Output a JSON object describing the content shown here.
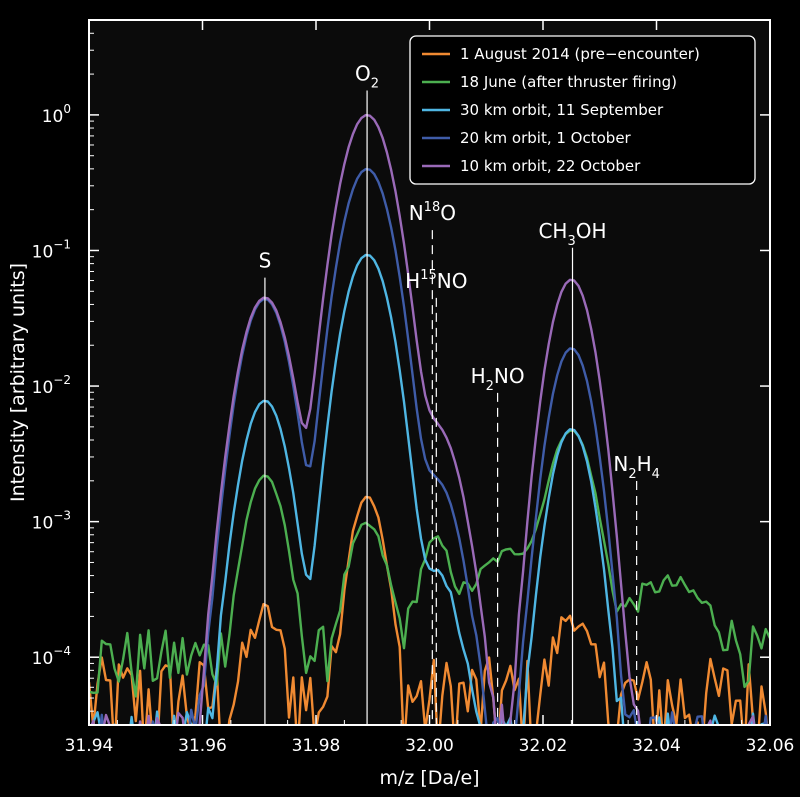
{
  "chart_data": {
    "type": "line",
    "xlabel": "m/z [Da/e]",
    "ylabel": "Intensity [arbitrary units]",
    "xlim": [
      31.94,
      32.06
    ],
    "ylim_log10": [
      -4.5,
      0.7
    ],
    "yscale": "log",
    "x_ticks": [
      {
        "value": 31.94,
        "label": "31.94"
      },
      {
        "value": 31.96,
        "label": "31.96"
      },
      {
        "value": 31.98,
        "label": "31.98"
      },
      {
        "value": 32.0,
        "label": "32.00"
      },
      {
        "value": 32.02,
        "label": "32.02"
      },
      {
        "value": 32.04,
        "label": "32.04"
      },
      {
        "value": 32.06,
        "label": "32.06"
      }
    ],
    "y_ticks": [
      {
        "exp": 0,
        "base": "10",
        "sup": "0"
      },
      {
        "exp": -1,
        "base": "10",
        "sup": "−1"
      },
      {
        "exp": -2,
        "base": "10",
        "sup": "−2"
      },
      {
        "exp": -3,
        "base": "10",
        "sup": "−3"
      },
      {
        "exp": -4,
        "base": "10",
        "sup": "−4"
      }
    ],
    "legend_position": "top-right",
    "series": [
      {
        "name": "1 August 2014 (pre−encounter)",
        "color": "#f08a32",
        "noise": 5e-05,
        "baseline": 5e-05,
        "peaks": [
          [
            31.971,
            0.00016,
            0.0022
          ],
          [
            31.989,
            0.0015,
            0.0022
          ],
          [
            32.025,
            0.00016,
            0.0022
          ]
        ]
      },
      {
        "name": "18 June (after thruster firing)",
        "color": "#4caf50",
        "noise": 6e-05,
        "baseline": 0.0001,
        "peaks": [
          [
            31.971,
            0.0021,
            0.0025
          ],
          [
            31.989,
            0.00085,
            0.0026
          ],
          [
            32.001,
            0.0006,
            0.0022
          ],
          [
            32.015,
            0.0005,
            0.006
          ],
          [
            32.025,
            0.0045,
            0.0028
          ],
          [
            32.042,
            0.00025,
            0.006
          ]
        ]
      },
      {
        "name": "30 km orbit, 11 September",
        "color": "#4fb6e3",
        "noise": 2e-05,
        "baseline": 2e-05,
        "peaks": [
          [
            31.971,
            0.0078,
            0.0028
          ],
          [
            31.989,
            0.093,
            0.0029
          ],
          [
            32.001,
            0.0004,
            0.003
          ],
          [
            32.025,
            0.0048,
            0.0026
          ]
        ]
      },
      {
        "name": "20 km orbit, 1 October",
        "color": "#3f5ca8",
        "noise": 2e-05,
        "baseline": 2e-05,
        "peaks": [
          [
            31.971,
            0.044,
            0.0029
          ],
          [
            31.989,
            0.4,
            0.003
          ],
          [
            32.001,
            0.002,
            0.003
          ],
          [
            32.025,
            0.019,
            0.0026
          ]
        ]
      },
      {
        "name": "10 km orbit, 22 October",
        "color": "#9a6ab8",
        "noise": 2e-05,
        "baseline": 2e-05,
        "peaks": [
          [
            31.971,
            0.045,
            0.003
          ],
          [
            31.989,
            1.0,
            0.0031
          ],
          [
            32.001,
            0.005,
            0.0032
          ],
          [
            32.025,
            0.061,
            0.0027
          ]
        ]
      }
    ],
    "annotations": [
      {
        "id": "S",
        "text": "S",
        "x": 31.971,
        "line_top_exp": -1.2,
        "style": "solid"
      },
      {
        "id": "O2",
        "text": "O",
        "sub": "2",
        "x": 31.989,
        "line_top_exp": 0.18,
        "style": "solid"
      },
      {
        "id": "N18O",
        "text": "N",
        "sup": "18",
        "tail": "O",
        "x": 32.0005,
        "line_top_exp": -0.85,
        "style": "dashed"
      },
      {
        "id": "H15NO",
        "text": "H",
        "sup": "15",
        "tail": "NO",
        "x": 32.0012,
        "line_top_exp": -1.35,
        "style": "dashed"
      },
      {
        "id": "H2NO",
        "text": "H",
        "sub": "2",
        "tail": "NO",
        "x": 32.012,
        "line_top_exp": -2.05,
        "style": "dashed"
      },
      {
        "id": "CH3OH",
        "text": "CH",
        "sub": "3",
        "tail": "OH",
        "x": 32.0252,
        "line_top_exp": -0.98,
        "style": "solid"
      },
      {
        "id": "N2H4",
        "text": "N",
        "sub": "2",
        "tail": "H",
        "sub2": "4",
        "x": 32.0365,
        "line_top_exp": -2.7,
        "style": "dashed"
      }
    ]
  }
}
